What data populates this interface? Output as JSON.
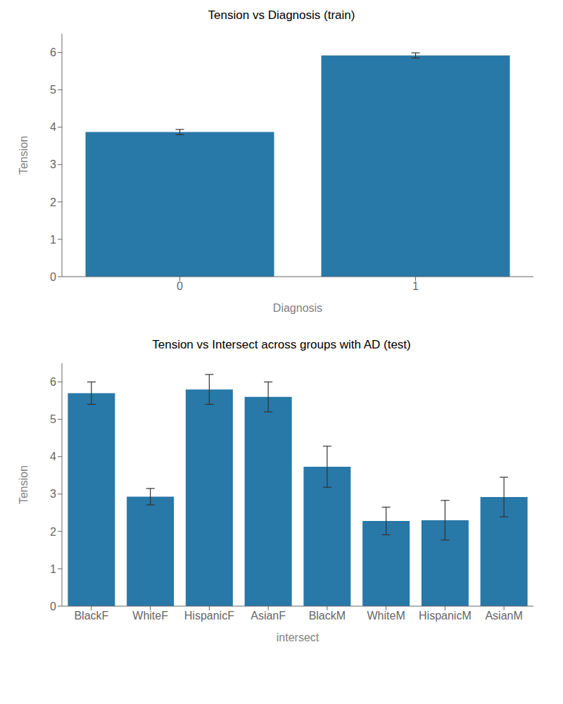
{
  "chart_data": [
    {
      "type": "bar",
      "title": "Tension vs Diagnosis (train)",
      "xlabel": "Diagnosis",
      "ylabel": "Tension",
      "categories": [
        "0",
        "1"
      ],
      "values": [
        3.87,
        5.92
      ],
      "errors": [
        0.07,
        0.07
      ],
      "color": "#2878a8",
      "ylim": [
        0,
        6.5
      ],
      "yticks": [
        0,
        1,
        2,
        3,
        4,
        5,
        6
      ],
      "grid": false
    },
    {
      "type": "bar",
      "title": "Tension vs Intersect across groups with AD (test)",
      "xlabel": "intersect",
      "ylabel": "Tension",
      "categories": [
        "BlackF",
        "WhiteF",
        "HispanicF",
        "AsianF",
        "BlackM",
        "WhiteM",
        "HispanicM",
        "AsianM"
      ],
      "values": [
        5.7,
        2.93,
        5.8,
        5.6,
        3.73,
        2.28,
        2.3,
        2.92
      ],
      "errors": [
        0.3,
        0.22,
        0.4,
        0.4,
        0.55,
        0.37,
        0.53,
        0.53
      ],
      "color": "#2878a8",
      "ylim": [
        0,
        6.5
      ],
      "yticks": [
        0,
        1,
        2,
        3,
        4,
        5,
        6
      ],
      "grid": false
    }
  ]
}
